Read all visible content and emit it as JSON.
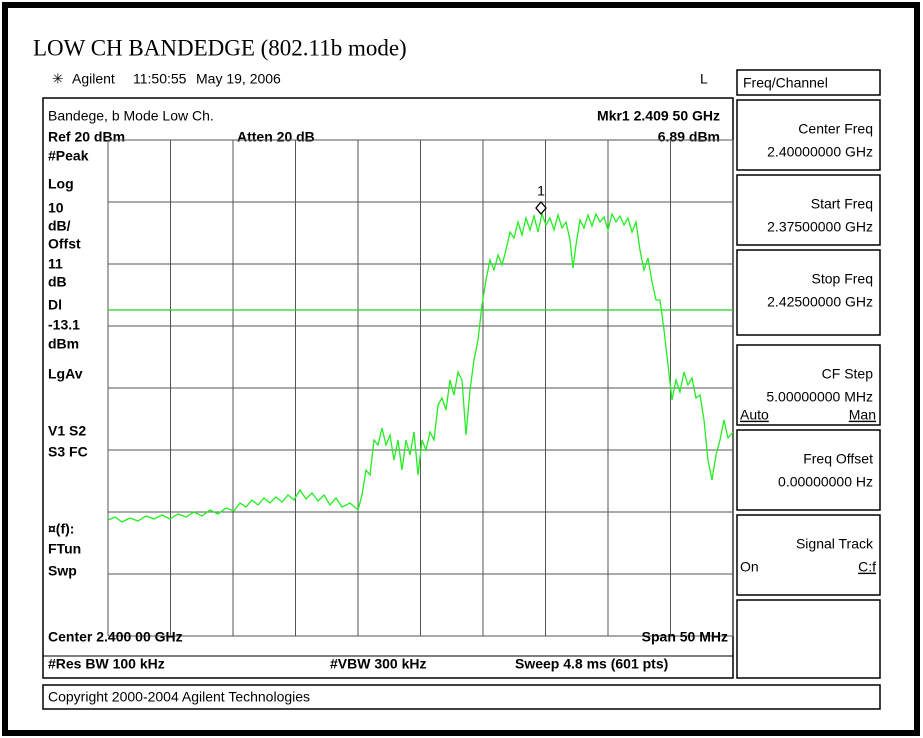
{
  "title": "LOW CH BANDEDGE (802.11b mode)",
  "status_bar": {
    "brand": "Agilent",
    "time": "11:50:55",
    "date": "May 19, 2006",
    "indicator": "L"
  },
  "screen": {
    "top_left": "Bandege, b Mode Low Ch.",
    "ref": "Ref 20 dBm",
    "atten": "Atten 20 dB",
    "marker": "Mkr1 2.409 50 GHz",
    "marker_level": "6.89 dBm",
    "marker_id": "1",
    "side_labels": [
      "#Peak",
      "Log",
      "10",
      "dB/",
      "Offst",
      "11",
      "dB",
      "Dl",
      "-13.1",
      "dBm",
      "LgAv",
      "V1  S2",
      "S3  FC",
      "¤(f):",
      "FTun",
      "Swp"
    ],
    "center": "Center 2.400 00 GHz",
    "span": "Span 50 MHz",
    "res_bw": "#Res BW 100 kHz",
    "vbw": "#VBW 300 kHz",
    "sweep": "Sweep 4.8 ms (601 pts)"
  },
  "menu": {
    "title": "Freq/Channel",
    "keys": [
      {
        "label": "Center Freq",
        "value": "2.40000000 GHz"
      },
      {
        "label": "Start Freq",
        "value": "2.37500000 GHz"
      },
      {
        "label": "Stop Freq",
        "value": "2.42500000 GHz"
      },
      {
        "label": "CF Step",
        "value": "5.00000000 MHz",
        "left": "Auto",
        "right": "Man"
      },
      {
        "label": "Freq Offset",
        "value": "0.00000000  Hz"
      },
      {
        "label": "Signal Track",
        "left": "On",
        "right": "C:f"
      }
    ]
  },
  "copyright": "Copyright 2000-2004 Agilent Technologies"
}
